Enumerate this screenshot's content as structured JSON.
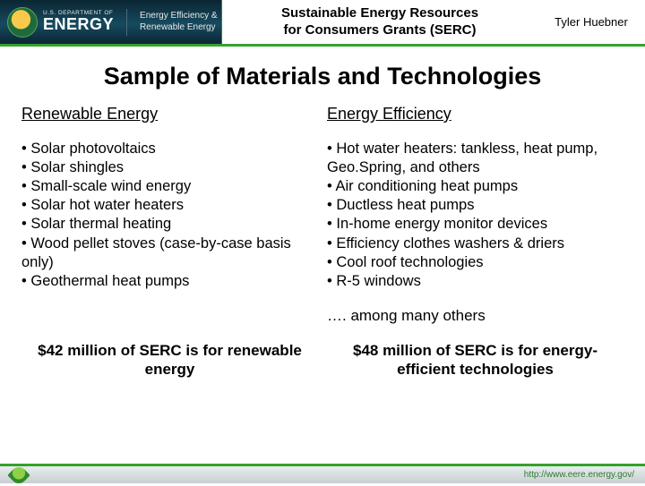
{
  "header": {
    "dept_line": "U.S. DEPARTMENT OF",
    "energy_word": "ENERGY",
    "eere_line1": "Energy Efficiency &",
    "eere_line2": "Renewable Energy",
    "program_title_line1": "Sustainable Energy Resources",
    "program_title_line2": "for Consumers Grants (SERC)",
    "author": "Tyler Huebner"
  },
  "title": "Sample of Materials and Technologies",
  "left": {
    "heading": "Renewable Energy",
    "items": [
      "Solar photovoltaics",
      "Solar shingles",
      "Small-scale wind energy",
      "Solar hot water heaters",
      "Solar thermal heating",
      "Wood pellet stoves (case-by-case basis only)",
      "Geothermal heat pumps"
    ],
    "footnote": "$42 million of SERC is for renewable energy"
  },
  "right": {
    "heading": "Energy Efficiency",
    "items": [
      "Hot water heaters: tankless, heat pump, Geo.Spring, and others",
      "Air conditioning heat pumps",
      "Ductless heat pumps",
      "In-home energy monitor devices",
      "Efficiency clothes washers & driers",
      "Cool roof technologies",
      "R-5 windows"
    ],
    "among": "…. among many others",
    "footnote": "$48 million of SERC is for energy-efficient technologies"
  },
  "footer_url": "http://www.eere.energy.gov/",
  "colors": {
    "accent_green": "#34a22a",
    "header_dark": "#0b2633"
  }
}
